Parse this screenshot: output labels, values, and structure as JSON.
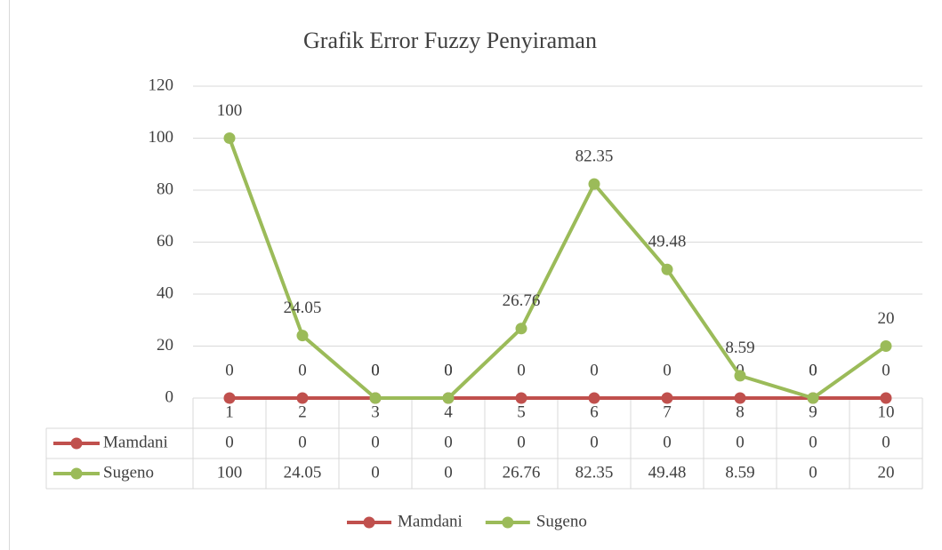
{
  "chart_data": {
    "type": "line",
    "title": "Grafik Error Fuzzy Penyiraman",
    "categories": [
      1,
      2,
      3,
      4,
      5,
      6,
      7,
      8,
      9,
      10
    ],
    "series": [
      {
        "name": "Mamdani",
        "color": "#c0504d",
        "values": [
          0,
          0,
          0,
          0,
          0,
          0,
          0,
          0,
          0,
          0
        ]
      },
      {
        "name": "Sugeno",
        "color": "#9bbb59",
        "values": [
          100,
          24.05,
          0,
          0,
          26.76,
          82.35,
          49.48,
          8.59,
          0,
          20
        ]
      }
    ],
    "ylim": [
      0,
      120
    ],
    "yticks": [
      0,
      20,
      40,
      60,
      80,
      100,
      120
    ],
    "grid": true,
    "legend": "bottom",
    "data_table": true
  }
}
